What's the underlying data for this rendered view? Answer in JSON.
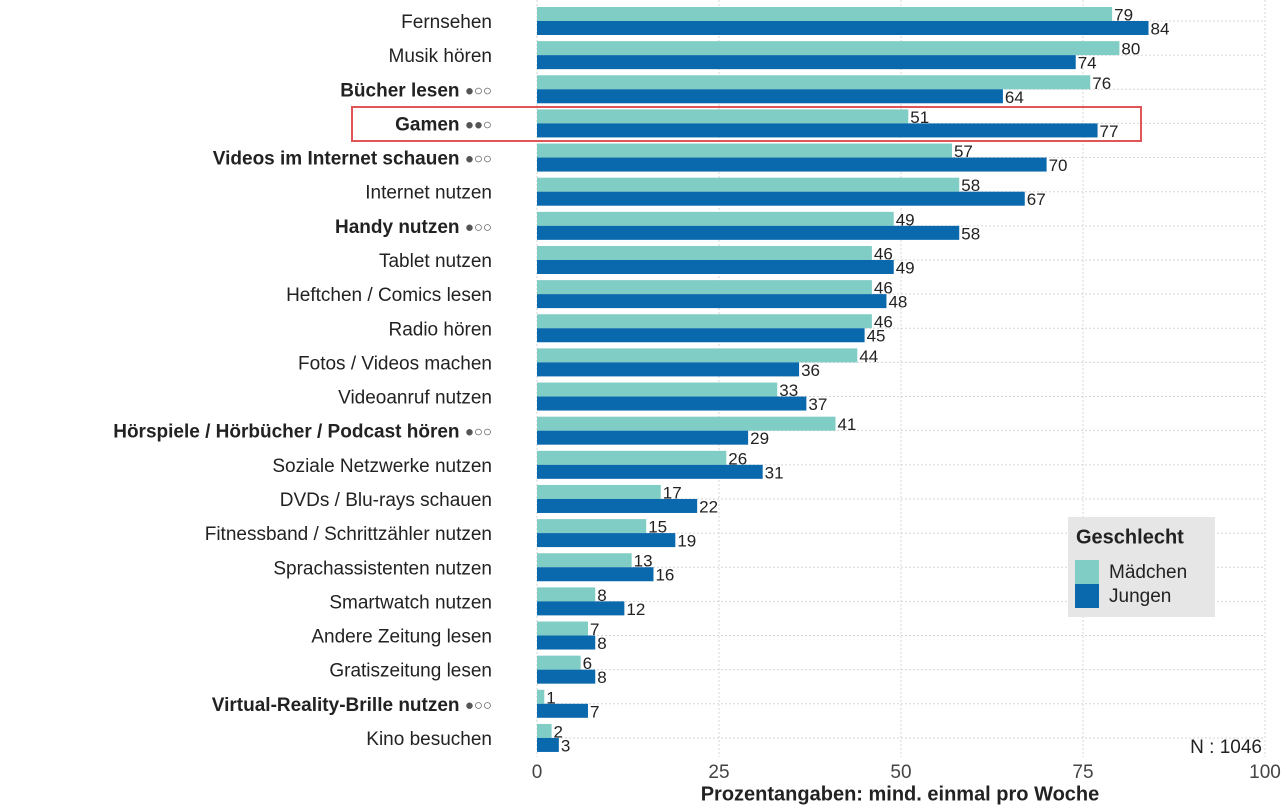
{
  "chart_data": {
    "type": "bar",
    "orientation": "horizontal",
    "x_label": "Prozentangaben: mind. einmal pro Woche",
    "categories": [
      "Fernsehen",
      "Musik hören",
      "Bücher lesen ●○○",
      "Gamen ●●○",
      "Videos im Internet schauen ●○○",
      "Internet nutzen",
      "Handy nutzen ●○○",
      "Tablet nutzen",
      "Heftchen / Comics lesen",
      "Radio hören",
      "Fotos / Videos machen",
      "Videoanruf nutzen",
      "Hörspiele / Hörbücher / Podcast hören ●○○",
      "Soziale Netzwerke nutzen",
      "DVDs / Blu-rays schauen",
      "Fitnessband / Schrittzähler nutzen",
      "Sprachassistenten nutzen",
      "Smartwatch nutzen",
      "Andere Zeitung lesen",
      "Gratiszeitung lesen",
      "Virtual-Reality-Brille nutzen ●○○",
      "Kino besuchen"
    ],
    "series": [
      {
        "name": "Mädchen",
        "color": "#7fcdc4",
        "values": [
          79,
          80,
          76,
          51,
          57,
          58,
          49,
          46,
          46,
          46,
          44,
          33,
          41,
          26,
          17,
          15,
          13,
          8,
          7,
          6,
          1,
          2
        ]
      },
      {
        "name": "Jungen",
        "color": "#0a68ad",
        "values": [
          84,
          74,
          64,
          77,
          70,
          67,
          58,
          49,
          48,
          45,
          36,
          37,
          29,
          31,
          22,
          19,
          16,
          12,
          8,
          8,
          7,
          3
        ]
      }
    ],
    "xlim": [
      0,
      100
    ],
    "xticks": [
      0,
      25,
      50,
      75,
      100
    ],
    "grid": true,
    "legend": {
      "title": "Geschlecht",
      "position": "right"
    },
    "annotation": "N : 1046"
  }
}
